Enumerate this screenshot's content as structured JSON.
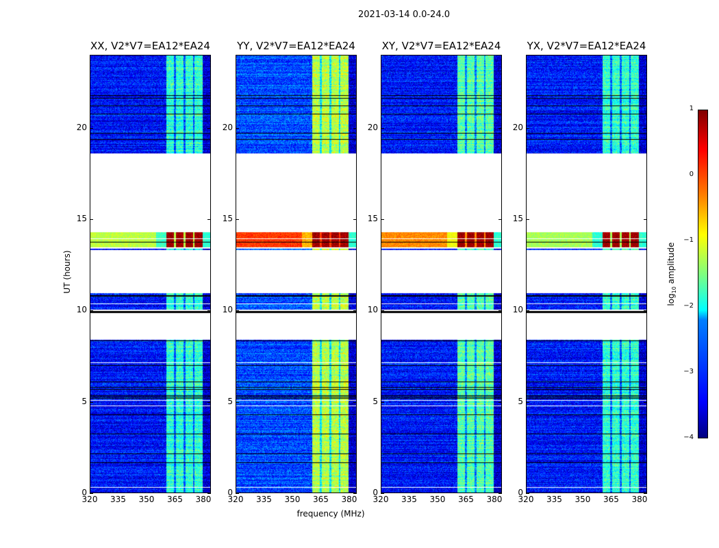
{
  "chart_data": {
    "type": "heatmap",
    "title": "2021-03-14 0.0-24.0",
    "xlabel": "frequency (MHz)",
    "ylabel": "UT (hours)",
    "xlim": [
      320,
      384
    ],
    "ylim": [
      0,
      24
    ],
    "xticks": [
      320,
      335,
      350,
      365,
      380
    ],
    "yticks": [
      0,
      5,
      10,
      15,
      20
    ],
    "data_segments_hours": [
      [
        0,
        8.4
      ],
      [
        9.88,
        9.98
      ],
      [
        10.05,
        10.95
      ],
      [
        13.3,
        13.4
      ],
      [
        13.45,
        14.3
      ],
      [
        18.6,
        24
      ]
    ],
    "flare_segment_hours": [
      13.45,
      14.3
    ],
    "rfi_band_mhz": [
      360.5,
      379.5
    ],
    "subband_gaps_mhz": [
      365,
      370,
      375
    ],
    "colorbar": {
      "label_main": "log",
      "label_sub": "10",
      "label_rest": " amplitude",
      "range": [
        -4,
        1
      ],
      "ticks": [
        1,
        0,
        -1,
        -2,
        -3,
        -4
      ],
      "colormap": "jet"
    },
    "panels": [
      {
        "title": "XX, V2*V7=EA12*EA24",
        "background_log_amp": -3.3,
        "band_log_amp": -1.9,
        "flare_background_log_amp": -1.2,
        "flare_band_log_amp": 0.85
      },
      {
        "title": "YY, V2*V7=EA12*EA24",
        "background_log_amp": -3.0,
        "band_log_amp": -1.2,
        "flare_background_log_amp": 0.1,
        "flare_band_log_amp": 0.85
      },
      {
        "title": "XY, V2*V7=EA12*EA24",
        "background_log_amp": -3.3,
        "band_log_amp": -1.7,
        "flare_background_log_amp": -0.3,
        "flare_band_log_amp": 0.85
      },
      {
        "title": "YX, V2*V7=EA12*EA24",
        "background_log_amp": -3.3,
        "band_log_amp": -1.9,
        "flare_background_log_amp": -1.3,
        "flare_band_log_amp": 0.85
      }
    ]
  }
}
